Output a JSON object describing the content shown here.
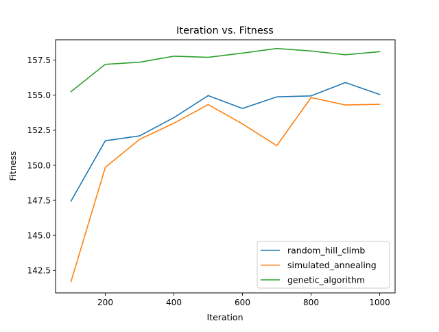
{
  "chart_data": {
    "type": "line",
    "title": "Iteration vs. Fitness",
    "xlabel": "Iteration",
    "ylabel": "Fitness",
    "xlim": [
      55,
      1045
    ],
    "ylim": [
      140.9,
      158.95
    ],
    "xticks": [
      200,
      400,
      600,
      800,
      1000
    ],
    "xtick_labels": [
      "200",
      "400",
      "600",
      "800",
      "1000"
    ],
    "yticks": [
      142.5,
      145.0,
      147.5,
      150.0,
      152.5,
      155.0,
      157.5
    ],
    "ytick_labels": [
      "142.5",
      "145.0",
      "147.5",
      "150.0",
      "152.5",
      "155.0",
      "157.5"
    ],
    "grid": false,
    "legend_position": "lower-right",
    "x": [
      100,
      200,
      300,
      400,
      500,
      600,
      700,
      800,
      900,
      1000
    ],
    "series": [
      {
        "name": "random_hill_climb",
        "color": "#1f77b4",
        "values": [
          147.45,
          151.75,
          152.1,
          153.4,
          154.97,
          154.05,
          154.88,
          154.95,
          155.9,
          155.05
        ]
      },
      {
        "name": "simulated_annealing",
        "color": "#ff7f0e",
        "values": [
          141.7,
          149.85,
          151.85,
          153.0,
          154.33,
          152.95,
          151.4,
          154.83,
          154.3,
          154.35
        ]
      },
      {
        "name": "genetic_algorithm",
        "color": "#2ca02c",
        "values": [
          155.25,
          157.2,
          157.35,
          157.78,
          157.7,
          158.0,
          158.33,
          158.15,
          157.88,
          158.1
        ]
      }
    ]
  }
}
